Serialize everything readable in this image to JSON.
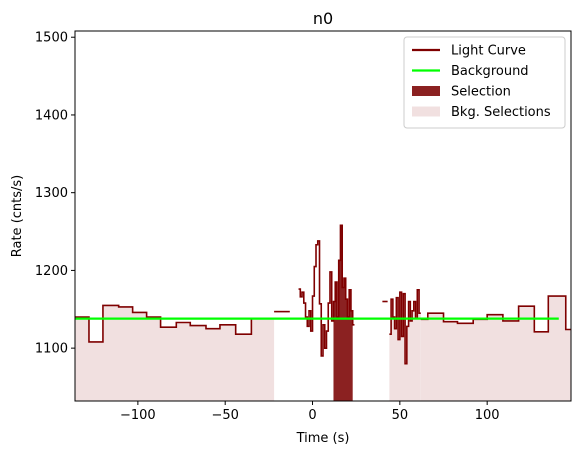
{
  "chart_data": {
    "type": "line",
    "title": "n0",
    "xlabel": "Time (s)",
    "ylabel": "Rate (cnts/s)",
    "xlim": [
      -136,
      148
    ],
    "ylim": [
      1032,
      1508
    ],
    "xticks": [
      -100,
      -50,
      0,
      50,
      100
    ],
    "yticks": [
      1100,
      1200,
      1300,
      1400,
      1500
    ],
    "background_rate": 1138,
    "colors": {
      "light_curve": "#7f0000",
      "background": "#00ff00",
      "selection": "#8b2121",
      "bkg_selection": "#f1e0e0"
    },
    "legend_position": "top-right",
    "legend": [
      {
        "label": "Light Curve",
        "kind": "line",
        "color": "#7f0000"
      },
      {
        "label": "Background",
        "kind": "line",
        "color": "#00ff00"
      },
      {
        "label": "Selection",
        "kind": "patch",
        "color": "#8b2121"
      },
      {
        "label": "Bkg. Selections",
        "kind": "patch",
        "color": "#f1e0e0"
      }
    ],
    "bkg_selections": [
      {
        "start": -136,
        "end": -22
      },
      {
        "start": 41,
        "end": 148
      }
    ],
    "selection": {
      "start": 12,
      "end": 23
    },
    "series": [
      {
        "kind": "step",
        "x": [
          -136,
          -128,
          -128,
          -120,
          -120,
          -111,
          -111,
          -103,
          -103,
          -95,
          -95,
          -87,
          -87,
          -78,
          -78,
          -70,
          -70,
          -61,
          -61,
          -53,
          -53,
          -44,
          -44,
          -35,
          -35,
          -22
        ],
        "y": [
          1140,
          1140,
          1108,
          1108,
          1155,
          1155,
          1153,
          1153,
          1146,
          1146,
          1140,
          1140,
          1127,
          1127,
          1133,
          1133,
          1129,
          1129,
          1125,
          1125,
          1130,
          1130,
          1118,
          1118,
          1138,
          1138
        ]
      },
      {
        "kind": "step",
        "x": [
          -22,
          -13
        ],
        "y": [
          1147,
          1147
        ]
      },
      {
        "kind": "step",
        "x": [
          -8,
          -7,
          -7,
          -6,
          -6,
          -5,
          -5,
          -4,
          -4,
          -3,
          -3,
          -2,
          -2,
          -1,
          -1,
          0,
          0,
          1,
          1,
          2,
          2,
          3,
          3,
          4,
          4,
          5,
          5,
          6,
          6,
          7,
          7,
          8,
          8,
          9,
          9,
          10,
          10,
          11,
          11,
          12,
          12,
          13,
          13,
          14,
          14,
          15,
          15,
          16,
          16,
          17,
          17,
          18,
          18,
          19,
          19,
          20,
          20,
          21,
          21,
          22,
          22,
          23,
          23,
          24
        ],
        "y": [
          1176,
          1176,
          1166,
          1166,
          1172,
          1172,
          1158,
          1158,
          1140,
          1140,
          1128,
          1128,
          1148,
          1148,
          1122,
          1122,
          1167,
          1167,
          1205,
          1205,
          1233,
          1233,
          1238,
          1238,
          1157,
          1157,
          1090,
          1090,
          1130,
          1130,
          1100,
          1100,
          1122,
          1122,
          1158,
          1158,
          1198,
          1198,
          1135,
          1135,
          1160,
          1160,
          1185,
          1185,
          1140,
          1140,
          1213,
          1213,
          1258,
          1258,
          1178,
          1178,
          1190,
          1190,
          1163,
          1163,
          1140,
          1140,
          1175,
          1175,
          1148,
          1148,
          1130,
          1130
        ]
      },
      {
        "kind": "step",
        "x": [
          40,
          43
        ],
        "y": [
          1160,
          1160
        ]
      },
      {
        "kind": "step",
        "x": [
          44,
          45,
          45,
          46,
          46,
          47,
          47,
          48,
          48,
          49,
          49,
          50,
          50,
          51,
          51,
          52,
          52,
          53,
          53,
          54,
          54,
          55,
          55,
          56,
          56,
          57,
          57,
          58,
          58,
          59,
          59,
          60,
          60,
          61,
          61,
          62
        ],
        "y": [
          1118,
          1118,
          1163,
          1163,
          1140,
          1140,
          1125,
          1125,
          1165,
          1165,
          1111,
          1111,
          1172,
          1172,
          1115,
          1115,
          1170,
          1170,
          1080,
          1080,
          1128,
          1128,
          1160,
          1160,
          1135,
          1135,
          1148,
          1148,
          1160,
          1160,
          1138,
          1138,
          1175,
          1175,
          1145,
          1145
        ]
      },
      {
        "kind": "step",
        "x": [
          62,
          66,
          66,
          75,
          75,
          83,
          83,
          92,
          92,
          100,
          100,
          109,
          109,
          118,
          118,
          127,
          127,
          135,
          135,
          145,
          145,
          148
        ],
        "y": [
          1137,
          1137,
          1145,
          1145,
          1134,
          1134,
          1132,
          1132,
          1137,
          1137,
          1143,
          1143,
          1135,
          1135,
          1154,
          1154,
          1121,
          1121,
          1167,
          1167,
          1124,
          1124
        ]
      }
    ]
  }
}
